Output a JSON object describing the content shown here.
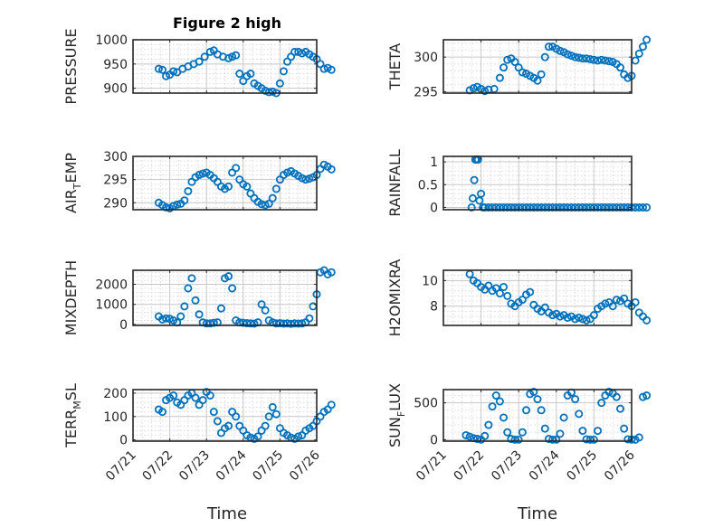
{
  "figure": {
    "title": "Figure 2 high",
    "xlabel": "Time",
    "x_ticks": [
      "07/21",
      "07/22",
      "07/23",
      "07/24",
      "07/25",
      "07/26"
    ]
  },
  "chart_data": [
    {
      "type": "scatter",
      "title": "Figure 2 high",
      "ylabel": "PRESSURE",
      "ylabel_sub": "",
      "ylabel_post": "",
      "xlabel": "",
      "xlim": [
        "07/21",
        "07/26"
      ],
      "ylim": [
        890,
        1000
      ],
      "yticks": [
        900,
        950,
        1000
      ],
      "grid": true,
      "x_days": [
        0.7,
        0.8,
        0.9,
        1.0,
        1.1,
        1.2,
        1.35,
        1.5,
        1.65,
        1.8,
        1.95,
        2.1,
        2.2,
        2.3,
        2.45,
        2.6,
        2.7,
        2.8,
        2.9,
        3.0,
        3.1,
        3.2,
        3.3,
        3.4,
        3.5,
        3.6,
        3.7,
        3.8,
        3.9,
        4.0,
        4.1,
        4.2,
        4.3,
        4.4,
        4.5,
        4.6,
        4.7,
        4.8,
        4.9,
        5.0,
        5.1,
        5.2,
        5.3,
        5.4
      ],
      "y": [
        940,
        938,
        925,
        928,
        935,
        933,
        940,
        945,
        950,
        955,
        965,
        975,
        978,
        970,
        965,
        962,
        965,
        968,
        930,
        915,
        925,
        930,
        910,
        905,
        900,
        895,
        892,
        893,
        890,
        910,
        935,
        955,
        965,
        975,
        975,
        972,
        975,
        970,
        965,
        960,
        950,
        940,
        942,
        938
      ]
    },
    {
      "type": "scatter",
      "ylabel": "THETA",
      "ylabel_sub": "",
      "ylabel_post": "",
      "xlim": [
        "07/21",
        "07/26"
      ],
      "ylim": [
        294.8,
        302.5
      ],
      "yticks": [
        295,
        300
      ],
      "grid": true,
      "x_days": [
        0.7,
        0.8,
        0.9,
        1.0,
        1.1,
        1.2,
        1.35,
        1.5,
        1.6,
        1.7,
        1.8,
        1.9,
        2.0,
        2.1,
        2.2,
        2.3,
        2.4,
        2.5,
        2.6,
        2.7,
        2.8,
        2.9,
        3.0,
        3.1,
        3.2,
        3.3,
        3.4,
        3.5,
        3.6,
        3.7,
        3.8,
        3.9,
        4.0,
        4.1,
        4.2,
        4.3,
        4.4,
        4.5,
        4.6,
        4.7,
        4.8,
        4.9,
        5.0,
        5.1,
        5.2,
        5.3,
        5.4
      ],
      "y": [
        295.2,
        295.5,
        295.7,
        295.4,
        295.1,
        295.3,
        295.4,
        297.0,
        298.5,
        299.6,
        299.8,
        299.3,
        298.5,
        297.8,
        297.6,
        297.3,
        297.0,
        296.6,
        297.5,
        300.0,
        301.5,
        301.5,
        301.2,
        300.9,
        300.7,
        300.4,
        300.2,
        300.0,
        299.9,
        299.8,
        299.8,
        299.7,
        299.6,
        299.5,
        299.6,
        299.5,
        299.4,
        299.3,
        299.0,
        298.5,
        297.5,
        297.0,
        297.3,
        299.5,
        300.5,
        301.5,
        302.5
      ]
    },
    {
      "type": "scatter",
      "ylabel": "AIR",
      "ylabel_sub": "T",
      "ylabel_post": "EMP",
      "xlim": [
        "07/21",
        "07/26"
      ],
      "ylim": [
        288.5,
        300
      ],
      "yticks": [
        290,
        295,
        300
      ],
      "grid": true,
      "x_days": [
        0.7,
        0.8,
        0.9,
        1.0,
        1.1,
        1.2,
        1.3,
        1.4,
        1.5,
        1.6,
        1.7,
        1.8,
        1.9,
        2.0,
        2.1,
        2.2,
        2.3,
        2.4,
        2.5,
        2.6,
        2.7,
        2.8,
        2.9,
        3.0,
        3.1,
        3.2,
        3.3,
        3.4,
        3.5,
        3.6,
        3.7,
        3.8,
        3.9,
        4.0,
        4.1,
        4.2,
        4.3,
        4.4,
        4.5,
        4.6,
        4.7,
        4.8,
        4.9,
        5.0,
        5.1,
        5.2,
        5.3,
        5.4
      ],
      "y": [
        290.0,
        289.5,
        289.0,
        288.8,
        289.3,
        289.6,
        289.8,
        290.5,
        292.5,
        294.5,
        295.5,
        296.0,
        296.3,
        296.5,
        296.0,
        295.3,
        294.5,
        293.5,
        293.0,
        293.5,
        296.5,
        297.5,
        295.0,
        294.0,
        293.5,
        292.0,
        291.0,
        290.2,
        289.7,
        289.5,
        289.8,
        291.0,
        293.0,
        295.0,
        296.0,
        296.5,
        296.8,
        296.3,
        295.8,
        295.3,
        295.0,
        295.2,
        295.5,
        296.0,
        297.3,
        298.2,
        297.8,
        297.2
      ]
    },
    {
      "type": "scatter",
      "ylabel": "RAINFALL",
      "ylabel_sub": "",
      "ylabel_post": "",
      "xlim": [
        "07/21",
        "07/26"
      ],
      "ylim": [
        -0.05,
        1.12
      ],
      "yticks": [
        0,
        0.5,
        1
      ],
      "grid": true,
      "x_days": [
        0.75,
        0.78,
        0.82,
        0.85,
        0.88,
        0.92,
        0.96,
        1.0,
        1.05,
        1.1,
        1.2,
        1.3,
        1.4,
        1.5,
        1.6,
        1.7,
        1.8,
        1.9,
        2.0,
        2.1,
        2.2,
        2.3,
        2.4,
        2.5,
        2.6,
        2.7,
        2.8,
        2.9,
        3.0,
        3.1,
        3.2,
        3.3,
        3.4,
        3.5,
        3.6,
        3.7,
        3.8,
        3.9,
        4.0,
        4.1,
        4.2,
        4.3,
        4.4,
        4.5,
        4.6,
        4.7,
        4.8,
        4.9,
        5.0,
        5.1,
        5.2,
        5.3,
        5.4
      ],
      "y": [
        0,
        0.2,
        0.6,
        1.05,
        1.05,
        1.05,
        0.15,
        0.3,
        0,
        0,
        0,
        0,
        0,
        0,
        0,
        0,
        0,
        0,
        0,
        0,
        0,
        0,
        0,
        0,
        0,
        0,
        0,
        0,
        0,
        0,
        0,
        0,
        0,
        0,
        0,
        0,
        0,
        0,
        0,
        0,
        0,
        0,
        0,
        0,
        0,
        0,
        0,
        0,
        0,
        0,
        0,
        0,
        0
      ]
    },
    {
      "type": "scatter",
      "ylabel": "MIXDEPTH",
      "ylabel_sub": "",
      "ylabel_post": "",
      "xlim": [
        "07/21",
        "07/26"
      ],
      "ylim": [
        -50,
        2700
      ],
      "yticks": [
        0,
        1000,
        2000
      ],
      "grid": true,
      "x_days": [
        0.7,
        0.8,
        0.9,
        1.0,
        1.1,
        1.2,
        1.3,
        1.4,
        1.5,
        1.6,
        1.7,
        1.8,
        1.9,
        2.0,
        2.1,
        2.2,
        2.3,
        2.4,
        2.5,
        2.6,
        2.7,
        2.8,
        2.9,
        3.0,
        3.1,
        3.2,
        3.3,
        3.4,
        3.5,
        3.6,
        3.7,
        3.8,
        3.9,
        4.0,
        4.1,
        4.2,
        4.3,
        4.4,
        4.5,
        4.6,
        4.7,
        4.8,
        4.9,
        5.0,
        5.1,
        5.2,
        5.3,
        5.4
      ],
      "y": [
        400,
        250,
        300,
        280,
        200,
        100,
        400,
        900,
        1800,
        2300,
        1200,
        500,
        100,
        50,
        50,
        80,
        100,
        800,
        2300,
        2400,
        1800,
        200,
        100,
        80,
        60,
        50,
        40,
        100,
        1000,
        700,
        200,
        100,
        50,
        60,
        40,
        50,
        30,
        50,
        40,
        50,
        100,
        300,
        900,
        1500,
        2600,
        2700,
        2500,
        2600
      ]
    },
    {
      "type": "scatter",
      "ylabel": "H2OMIXRA",
      "ylabel_sub": "",
      "ylabel_post": "",
      "xlim": [
        "07/21",
        "07/26"
      ],
      "ylim": [
        6.5,
        10.8
      ],
      "yticks": [
        8,
        10
      ],
      "grid": true,
      "x_days": [
        0.7,
        0.8,
        0.9,
        1.0,
        1.1,
        1.2,
        1.3,
        1.4,
        1.5,
        1.6,
        1.7,
        1.8,
        1.9,
        2.0,
        2.1,
        2.2,
        2.3,
        2.4,
        2.5,
        2.6,
        2.7,
        2.8,
        2.9,
        3.0,
        3.1,
        3.2,
        3.3,
        3.4,
        3.5,
        3.6,
        3.7,
        3.8,
        3.9,
        4.0,
        4.1,
        4.2,
        4.3,
        4.4,
        4.5,
        4.6,
        4.7,
        4.8,
        4.9,
        5.0,
        5.1,
        5.2,
        5.3,
        5.4
      ],
      "y": [
        10.5,
        10.0,
        9.8,
        9.5,
        9.3,
        9.6,
        9.2,
        9.4,
        9.0,
        9.5,
        8.8,
        8.2,
        8.0,
        8.3,
        8.5,
        8.9,
        9.1,
        8.1,
        7.8,
        7.6,
        7.9,
        7.5,
        7.3,
        7.4,
        7.2,
        7.3,
        7.1,
        7.2,
        7.0,
        7.1,
        7.0,
        6.9,
        7.0,
        7.3,
        7.8,
        8.0,
        8.2,
        8.3,
        8.0,
        8.5,
        8.4,
        8.6,
        8.2,
        8.0,
        8.3,
        7.5,
        7.2,
        6.9
      ]
    },
    {
      "type": "scatter",
      "ylabel": "TERR",
      "ylabel_sub": "M",
      "ylabel_post": "SL",
      "xlim": [
        "07/21",
        "07/26"
      ],
      "ylim": [
        -5,
        215
      ],
      "yticks": [
        0,
        100,
        200
      ],
      "grid": true,
      "x_days": [
        0.7,
        0.8,
        0.9,
        1.0,
        1.1,
        1.2,
        1.3,
        1.4,
        1.5,
        1.6,
        1.7,
        1.8,
        1.9,
        2.0,
        2.1,
        2.2,
        2.3,
        2.4,
        2.5,
        2.6,
        2.7,
        2.8,
        2.9,
        3.0,
        3.1,
        3.2,
        3.3,
        3.4,
        3.5,
        3.6,
        3.7,
        3.8,
        3.9,
        4.0,
        4.1,
        4.2,
        4.3,
        4.4,
        4.5,
        4.6,
        4.7,
        4.8,
        4.9,
        5.0,
        5.1,
        5.2,
        5.3,
        5.4
      ],
      "y": [
        130,
        120,
        170,
        180,
        190,
        160,
        150,
        170,
        190,
        200,
        180,
        150,
        170,
        205,
        190,
        120,
        80,
        30,
        50,
        60,
        120,
        100,
        60,
        40,
        20,
        10,
        5,
        15,
        40,
        60,
        100,
        140,
        110,
        50,
        30,
        20,
        10,
        5,
        15,
        20,
        40,
        50,
        60,
        80,
        100,
        120,
        130,
        150
      ]
    },
    {
      "type": "scatter",
      "ylabel": "SUN",
      "ylabel_sub": "F",
      "ylabel_post": "LUX",
      "xlim": [
        "07/21",
        "07/26"
      ],
      "ylim": [
        -20,
        680
      ],
      "yticks": [
        0,
        500
      ],
      "grid": true,
      "x_days": [
        0.6,
        0.7,
        0.8,
        0.9,
        1.0,
        1.1,
        1.2,
        1.3,
        1.4,
        1.5,
        1.6,
        1.7,
        1.8,
        1.9,
        2.0,
        2.1,
        2.2,
        2.3,
        2.4,
        2.5,
        2.6,
        2.7,
        2.8,
        2.9,
        3.0,
        3.1,
        3.2,
        3.3,
        3.4,
        3.5,
        3.6,
        3.7,
        3.8,
        3.9,
        4.0,
        4.1,
        4.2,
        4.3,
        4.4,
        4.5,
        4.6,
        4.7,
        4.8,
        4.9,
        5.0,
        5.1,
        5.2,
        5.3,
        5.4
      ],
      "y": [
        60,
        40,
        20,
        10,
        0,
        50,
        200,
        450,
        600,
        520,
        300,
        100,
        10,
        0,
        0,
        100,
        400,
        620,
        650,
        550,
        400,
        150,
        10,
        0,
        0,
        80,
        300,
        600,
        640,
        550,
        350,
        120,
        5,
        0,
        0,
        120,
        500,
        600,
        650,
        630,
        580,
        420,
        150,
        5,
        0,
        0,
        30,
        580,
        600
      ]
    }
  ]
}
